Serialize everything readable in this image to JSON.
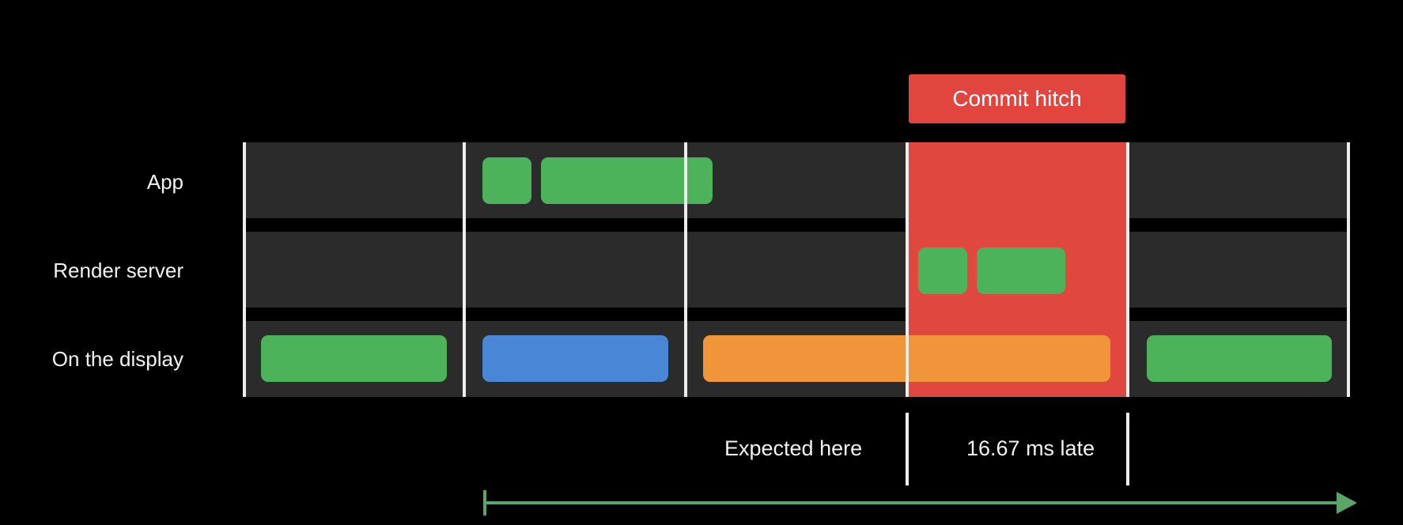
{
  "rows": {
    "app": "App",
    "render_server": "Render server",
    "display": "On the display"
  },
  "hitch": {
    "label": "Commit hitch",
    "color": "#e0473e",
    "label_color": "#e2453d"
  },
  "annotations": {
    "expected": "Expected here",
    "late": "16.67 ms late"
  },
  "colors": {
    "lane": "#2b2b2b",
    "green": "#4db35a",
    "blue": "#4a86d6",
    "orange": "#f0953a",
    "arrow": "#5aa66a",
    "divider": "#ededed"
  },
  "blocks": {
    "app": [
      "green",
      "green"
    ],
    "render_server": [
      "green",
      "green"
    ],
    "display": [
      "green",
      "blue",
      "orange",
      "green"
    ]
  }
}
